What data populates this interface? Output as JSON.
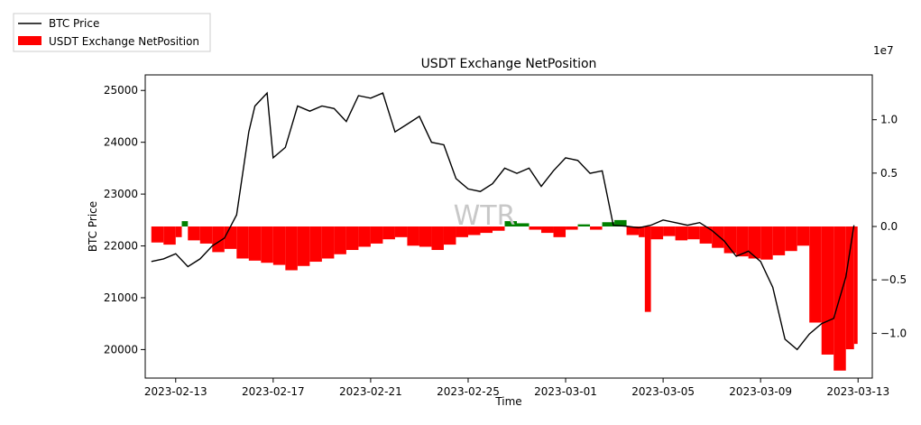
{
  "chart_data": {
    "type": "line",
    "title": "USDT Exchange NetPosition",
    "xlabel": "Time",
    "ylabel": "BTC Price",
    "y2_exponent_label": "1e7",
    "watermark": "WTR",
    "x_range": [
      "2023-02-11T18:00",
      "2023-03-13T14:00"
    ],
    "ylim": [
      19450,
      25300
    ],
    "y2lim": [
      -14200000,
      14200000
    ],
    "x_ticks": [
      "2023-02-13",
      "2023-02-17",
      "2023-02-21",
      "2023-02-25",
      "2023-03-01",
      "2023-03-05",
      "2023-03-09",
      "2023-03-13"
    ],
    "y_ticks": [
      20000,
      21000,
      22000,
      23000,
      24000,
      25000
    ],
    "y_tick_labels": [
      "20000",
      "21000",
      "22000",
      "23000",
      "24000",
      "25000"
    ],
    "y2_ticks": [
      -10000000,
      -5000000,
      0,
      5000000,
      10000000
    ],
    "y2_tick_labels": [
      "−1.0",
      "−0.5",
      "0.0",
      "0.5",
      "1.0"
    ],
    "legend": {
      "placement": "top-left",
      "entries": [
        "BTC Price",
        "USDT Exchange NetPosition"
      ]
    },
    "colors": {
      "price": "#000000",
      "negative": "#ff0000",
      "positive": "#008000"
    },
    "series": [
      {
        "name": "BTC Price",
        "axis": "left",
        "points": [
          [
            "2023-02-12T00:00",
            21700
          ],
          [
            "2023-02-12T12:00",
            21750
          ],
          [
            "2023-02-13T00:00",
            21850
          ],
          [
            "2023-02-13T12:00",
            21600
          ],
          [
            "2023-02-14T00:00",
            21750
          ],
          [
            "2023-02-14T12:00",
            22000
          ],
          [
            "2023-02-15T00:00",
            22150
          ],
          [
            "2023-02-15T12:00",
            22600
          ],
          [
            "2023-02-16T00:00",
            24200
          ],
          [
            "2023-02-16T06:00",
            24700
          ],
          [
            "2023-02-16T18:00",
            24950
          ],
          [
            "2023-02-17T00:00",
            23700
          ],
          [
            "2023-02-17T12:00",
            23900
          ],
          [
            "2023-02-18T00:00",
            24700
          ],
          [
            "2023-02-18T12:00",
            24600
          ],
          [
            "2023-02-19T00:00",
            24700
          ],
          [
            "2023-02-19T12:00",
            24650
          ],
          [
            "2023-02-20T00:00",
            24400
          ],
          [
            "2023-02-20T12:00",
            24900
          ],
          [
            "2023-02-21T00:00",
            24850
          ],
          [
            "2023-02-21T12:00",
            24950
          ],
          [
            "2023-02-22T00:00",
            24200
          ],
          [
            "2023-02-22T12:00",
            24350
          ],
          [
            "2023-02-23T00:00",
            24500
          ],
          [
            "2023-02-23T12:00",
            24000
          ],
          [
            "2023-02-24T00:00",
            23950
          ],
          [
            "2023-02-24T12:00",
            23300
          ],
          [
            "2023-02-25T00:00",
            23100
          ],
          [
            "2023-02-25T12:00",
            23050
          ],
          [
            "2023-02-26T00:00",
            23200
          ],
          [
            "2023-02-26T12:00",
            23500
          ],
          [
            "2023-02-27T00:00",
            23400
          ],
          [
            "2023-02-27T12:00",
            23500
          ],
          [
            "2023-02-28T00:00",
            23150
          ],
          [
            "2023-02-28T12:00",
            23450
          ],
          [
            "2023-03-01T00:00",
            23700
          ],
          [
            "2023-03-01T12:00",
            23650
          ],
          [
            "2023-03-02T00:00",
            23400
          ],
          [
            "2023-03-02T12:00",
            23450
          ],
          [
            "2023-03-02T23:00",
            22400
          ],
          [
            "2023-03-03T12:00",
            22380
          ],
          [
            "2023-03-04T00:00",
            22350
          ],
          [
            "2023-03-04T12:00",
            22400
          ],
          [
            "2023-03-05T00:00",
            22500
          ],
          [
            "2023-03-05T12:00",
            22450
          ],
          [
            "2023-03-06T00:00",
            22400
          ],
          [
            "2023-03-06T12:00",
            22450
          ],
          [
            "2023-03-07T00:00",
            22300
          ],
          [
            "2023-03-07T12:00",
            22100
          ],
          [
            "2023-03-08T00:00",
            21800
          ],
          [
            "2023-03-08T12:00",
            21900
          ],
          [
            "2023-03-09T00:00",
            21700
          ],
          [
            "2023-03-09T12:00",
            21200
          ],
          [
            "2023-03-10T00:00",
            20200
          ],
          [
            "2023-03-10T12:00",
            20000
          ],
          [
            "2023-03-11T00:00",
            20300
          ],
          [
            "2023-03-11T12:00",
            20500
          ],
          [
            "2023-03-12T00:00",
            20600
          ],
          [
            "2023-03-12T12:00",
            21400
          ],
          [
            "2023-03-12T20:00",
            22400
          ]
        ]
      },
      {
        "name": "USDT Exchange NetPosition",
        "axis": "right",
        "points": [
          [
            "2023-02-12T00:00",
            -1500000
          ],
          [
            "2023-02-12T12:00",
            -1700000
          ],
          [
            "2023-02-13T00:00",
            -1000000
          ],
          [
            "2023-02-13T06:00",
            500000
          ],
          [
            "2023-02-13T12:00",
            -1300000
          ],
          [
            "2023-02-14T00:00",
            -1600000
          ],
          [
            "2023-02-14T12:00",
            -2400000
          ],
          [
            "2023-02-15T00:00",
            -2100000
          ],
          [
            "2023-02-15T12:00",
            -3000000
          ],
          [
            "2023-02-16T00:00",
            -3200000
          ],
          [
            "2023-02-16T12:00",
            -3400000
          ],
          [
            "2023-02-17T00:00",
            -3600000
          ],
          [
            "2023-02-17T12:00",
            -4100000
          ],
          [
            "2023-02-18T00:00",
            -3700000
          ],
          [
            "2023-02-18T12:00",
            -3300000
          ],
          [
            "2023-02-19T00:00",
            -3000000
          ],
          [
            "2023-02-19T12:00",
            -2600000
          ],
          [
            "2023-02-20T00:00",
            -2200000
          ],
          [
            "2023-02-20T12:00",
            -1900000
          ],
          [
            "2023-02-21T00:00",
            -1600000
          ],
          [
            "2023-02-21T12:00",
            -1200000
          ],
          [
            "2023-02-22T00:00",
            -1000000
          ],
          [
            "2023-02-22T12:00",
            -1800000
          ],
          [
            "2023-02-23T00:00",
            -1900000
          ],
          [
            "2023-02-23T12:00",
            -2200000
          ],
          [
            "2023-02-24T00:00",
            -1700000
          ],
          [
            "2023-02-24T12:00",
            -1000000
          ],
          [
            "2023-02-25T00:00",
            -800000
          ],
          [
            "2023-02-25T12:00",
            -600000
          ],
          [
            "2023-02-26T00:00",
            -400000
          ],
          [
            "2023-02-26T12:00",
            500000
          ],
          [
            "2023-02-27T00:00",
            300000
          ],
          [
            "2023-02-27T12:00",
            -300000
          ],
          [
            "2023-02-28T00:00",
            -600000
          ],
          [
            "2023-02-28T12:00",
            -1000000
          ],
          [
            "2023-03-01T00:00",
            -300000
          ],
          [
            "2023-03-01T12:00",
            200000
          ],
          [
            "2023-03-02T00:00",
            -300000
          ],
          [
            "2023-03-02T12:00",
            400000
          ],
          [
            "2023-03-03T00:00",
            600000
          ],
          [
            "2023-03-03T12:00",
            -800000
          ],
          [
            "2023-03-04T00:00",
            -1000000
          ],
          [
            "2023-03-04T06:00",
            -8000000
          ],
          [
            "2023-03-04T12:00",
            -1200000
          ],
          [
            "2023-03-05T00:00",
            -900000
          ],
          [
            "2023-03-05T12:00",
            -1300000
          ],
          [
            "2023-03-06T00:00",
            -1200000
          ],
          [
            "2023-03-06T12:00",
            -1600000
          ],
          [
            "2023-03-07T00:00",
            -2000000
          ],
          [
            "2023-03-07T12:00",
            -2500000
          ],
          [
            "2023-03-08T00:00",
            -2800000
          ],
          [
            "2023-03-08T12:00",
            -3000000
          ],
          [
            "2023-03-09T00:00",
            -3100000
          ],
          [
            "2023-03-09T12:00",
            -2700000
          ],
          [
            "2023-03-10T00:00",
            -2300000
          ],
          [
            "2023-03-10T12:00",
            -1800000
          ],
          [
            "2023-03-11T00:00",
            -9000000
          ],
          [
            "2023-03-11T12:00",
            -12000000
          ],
          [
            "2023-03-12T00:00",
            -13500000
          ],
          [
            "2023-03-12T12:00",
            -11500000
          ],
          [
            "2023-03-12T20:00",
            -11000000
          ]
        ]
      }
    ]
  }
}
